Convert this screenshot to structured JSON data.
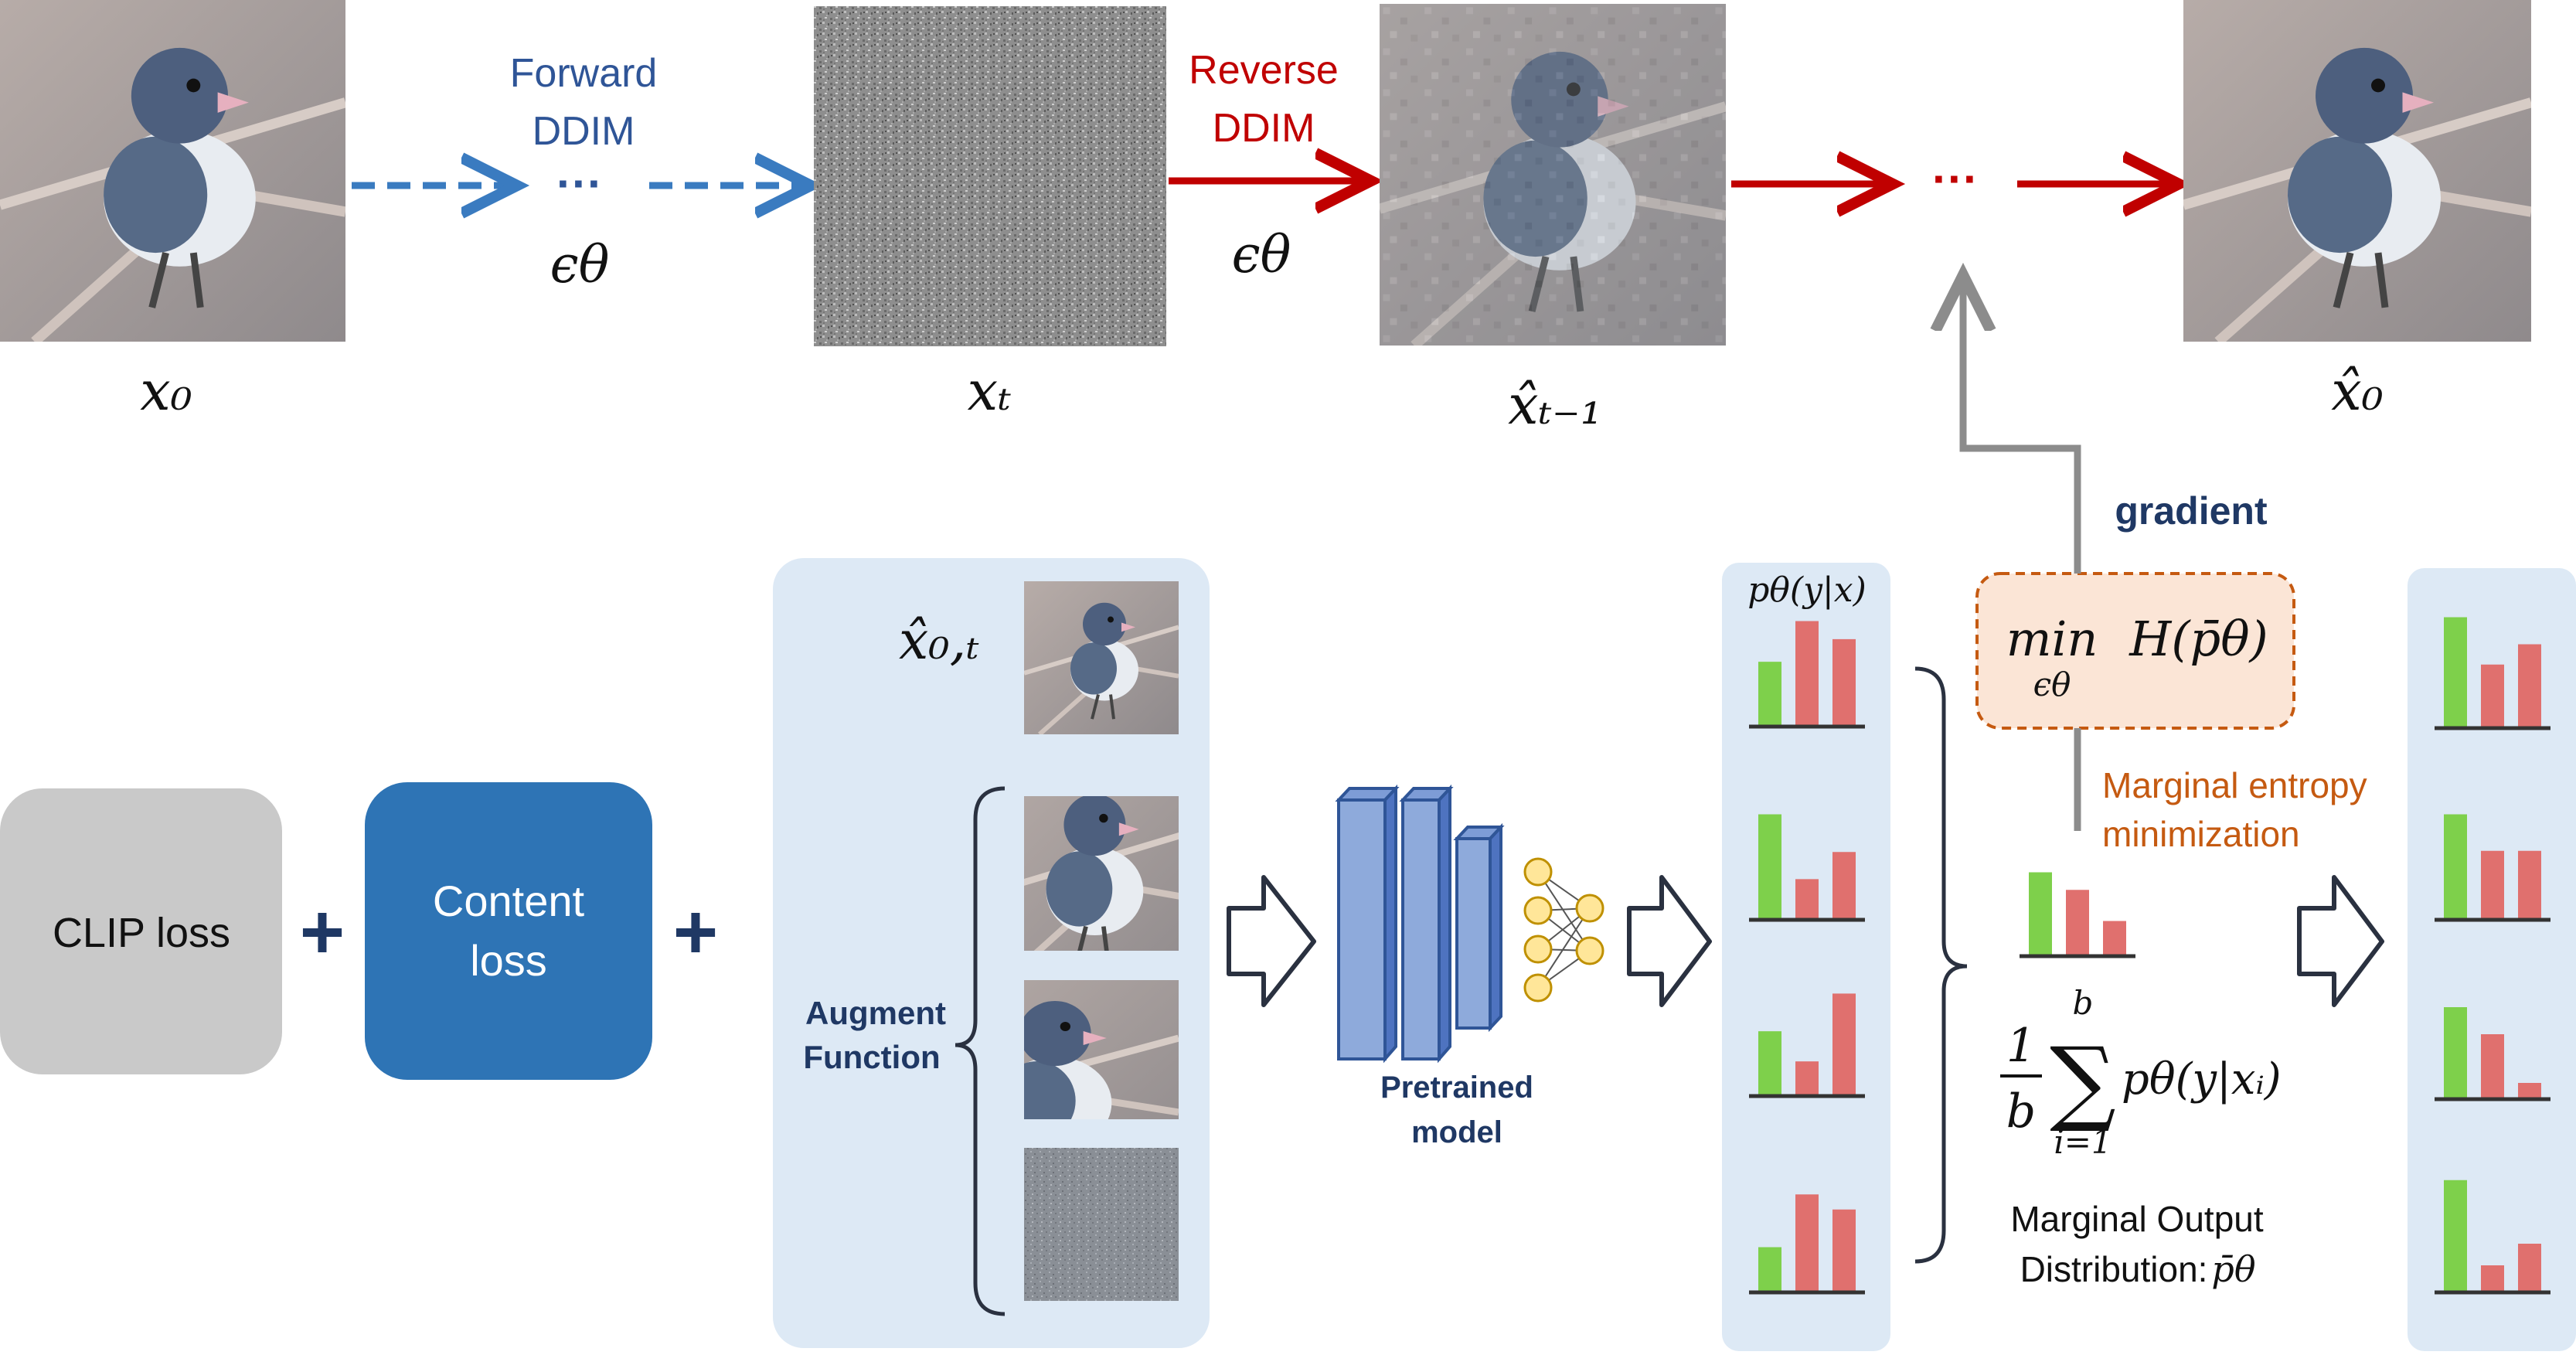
{
  "top_row": {
    "x0_label": "x₀",
    "forward": {
      "line1": "Forward",
      "line2": "DDIM",
      "dots": "···",
      "eps": "ϵθ"
    },
    "xt_label": "xₜ",
    "reverse": {
      "line1": "Reverse",
      "line2": "DDIM",
      "eps": "ϵθ"
    },
    "xt1_label": "x̂ₜ₋₁",
    "reverse_dots": "···",
    "x0hat_label": "x̂₀"
  },
  "losses": {
    "clip": "CLIP loss",
    "content_line1": "Content",
    "content_line2": "loss",
    "plus": "+"
  },
  "augment_panel": {
    "x0t_label": "x̂₀,ₜ",
    "augment_line1": "Augment",
    "augment_line2": "Function"
  },
  "model": {
    "line1": "Pretrained",
    "line2": "model"
  },
  "prob_header": "pθ(y|x)",
  "gradient_label": "gradient",
  "objective": {
    "min": "min",
    "sub": "ϵθ",
    "expr": "H(p̄θ)"
  },
  "entropy_label": {
    "line1": "Marginal entropy",
    "line2": "minimization"
  },
  "formula": {
    "frac_num": "1",
    "frac_den": "b",
    "sum_top": "b",
    "sum_sym": "∑",
    "sum_bottom": "i=1",
    "body": "pθ(y|xᵢ)"
  },
  "marginal_output": {
    "line1": "Marginal Output",
    "line2": "Distribution:",
    "symbol": "p̄θ"
  },
  "colors": {
    "green": "#7ed04b",
    "red": "#e0706e",
    "panel_bg": "#dde9f5",
    "blue_forward": "#3a7bc0",
    "dark_red": "#c00000",
    "content_blue": "#2e74b5",
    "gray_box": "#c9c9c9",
    "orange": "#c55a11",
    "navy": "#1f3864",
    "gradient_gray": "#8c8c8c"
  },
  "bar_groups": {
    "outputs": [
      [
        0.43,
        0.7,
        0.58
      ],
      [
        0.7,
        0.27,
        0.45
      ],
      [
        0.43,
        0.23,
        0.68
      ],
      [
        0.3,
        0.65,
        0.55
      ]
    ],
    "marginal": [
      0.62,
      0.49,
      0.26
    ],
    "adapted": [
      [
        0.82,
        0.47,
        0.62
      ],
      [
        0.78,
        0.51,
        0.51
      ],
      [
        0.68,
        0.48,
        0.12
      ],
      [
        0.83,
        0.2,
        0.36
      ]
    ]
  }
}
